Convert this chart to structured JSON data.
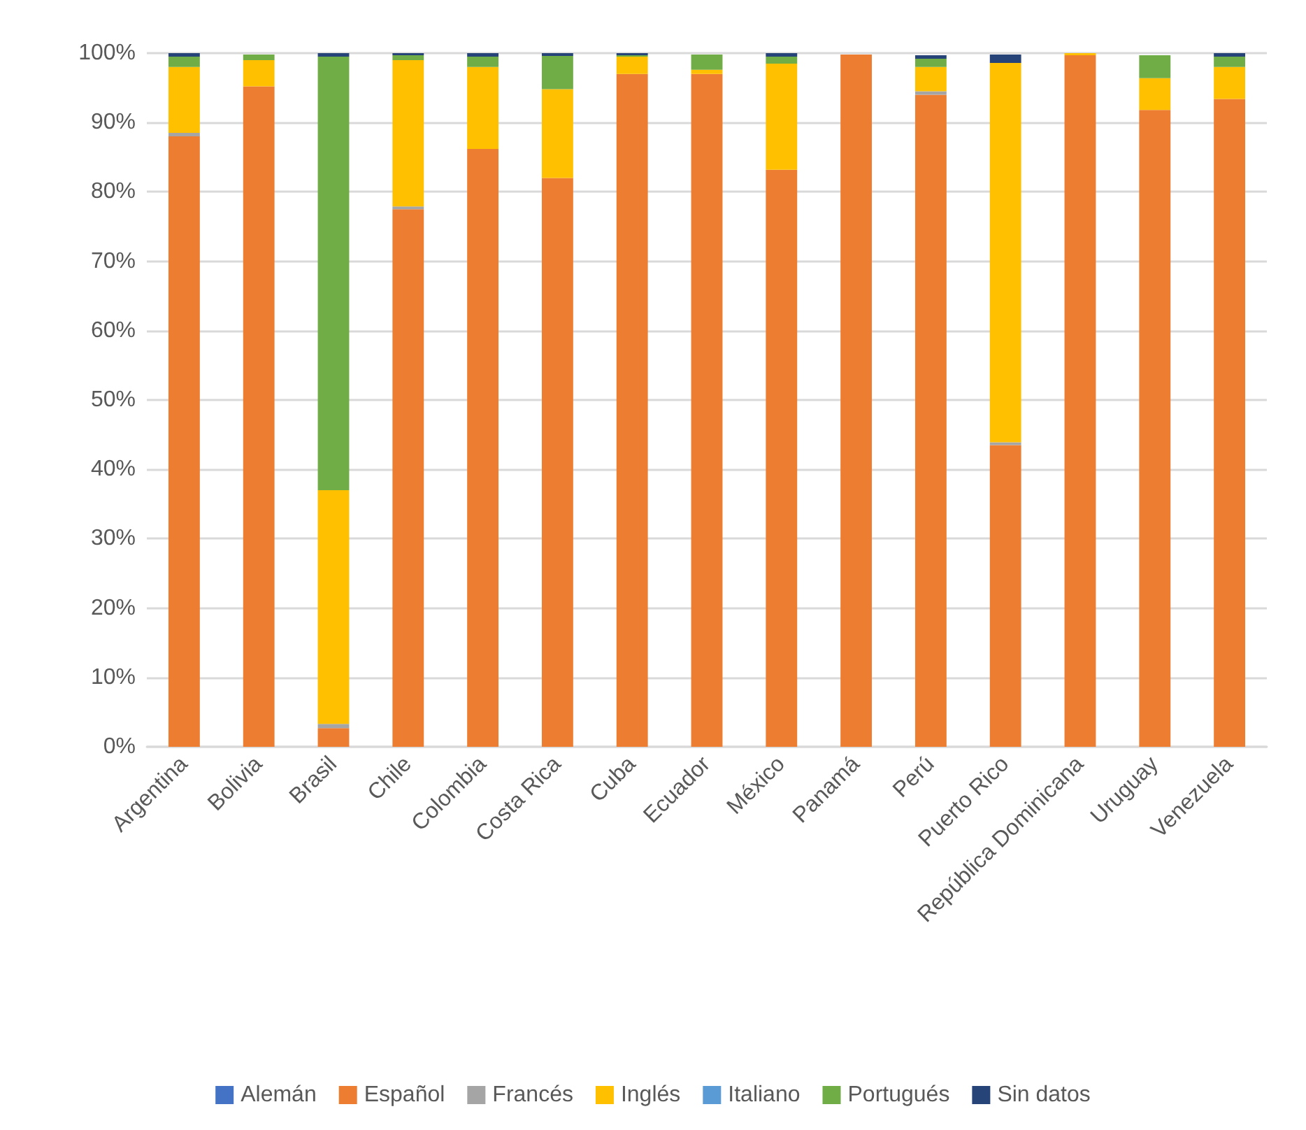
{
  "chart_data": {
    "type": "bar",
    "stacked": true,
    "categories": [
      "Argentina",
      "Bolivia",
      "Brasil",
      "Chile",
      "Colombia",
      "Costa Rica",
      "Cuba",
      "Ecuador",
      "México",
      "Panamá",
      "Perú",
      "Puerto Rico",
      "República Dominicana",
      "Uruguay",
      "Venezuela"
    ],
    "series": [
      {
        "name": "Alemán",
        "color": "#4472c4",
        "values": [
          0,
          0,
          0,
          0,
          0,
          0,
          0,
          0,
          0,
          0,
          0,
          0,
          0,
          0,
          0
        ]
      },
      {
        "name": "Español",
        "color": "#ed7d31",
        "values": [
          88,
          95.2,
          2.7,
          77.5,
          86.2,
          82,
          97,
          97,
          83.2,
          99.8,
          94,
          43.5,
          99.7,
          91.8,
          93.4
        ]
      },
      {
        "name": "Francés",
        "color": "#a5a5a5",
        "values": [
          0.5,
          0,
          0.6,
          0.4,
          0,
          0,
          0,
          0,
          0,
          0,
          0.5,
          0.4,
          0,
          0,
          0
        ]
      },
      {
        "name": "Inglés",
        "color": "#ffc000",
        "values": [
          9.5,
          3.8,
          33.7,
          21.1,
          11.8,
          12.8,
          2.5,
          0.6,
          15.3,
          0,
          3.5,
          54.7,
          0.3,
          4.6,
          4.6
        ]
      },
      {
        "name": "Italiano",
        "color": "#5b9bd5",
        "values": [
          0,
          0,
          0,
          0,
          0,
          0,
          0,
          0,
          0,
          0,
          0,
          0,
          0,
          0,
          0
        ]
      },
      {
        "name": "Portugués",
        "color": "#70ad47",
        "values": [
          1.5,
          0.8,
          62.5,
          0.7,
          1.5,
          4.8,
          0.2,
          2.2,
          1,
          0,
          1.2,
          0,
          0,
          3.3,
          1.5
        ]
      },
      {
        "name": "Sin datos",
        "color": "#264478",
        "values": [
          0.5,
          0,
          0.5,
          0.3,
          0.5,
          0.4,
          0.3,
          0,
          0.5,
          0,
          0.5,
          1.2,
          0,
          0,
          0.5
        ]
      }
    ],
    "ylim": [
      0,
      100
    ],
    "yticks": [
      {
        "value": 0,
        "label": "0%"
      },
      {
        "value": 10,
        "label": "10%"
      },
      {
        "value": 20,
        "label": "20%"
      },
      {
        "value": 30,
        "label": "30%"
      },
      {
        "value": 40,
        "label": "40%"
      },
      {
        "value": 50,
        "label": "50%"
      },
      {
        "value": 60,
        "label": "60%"
      },
      {
        "value": 70,
        "label": "70%"
      },
      {
        "value": 80,
        "label": "80%"
      },
      {
        "value": 90,
        "label": "90%"
      },
      {
        "value": 100,
        "label": "100%"
      }
    ],
    "grid": "y",
    "legend": "bottom"
  }
}
